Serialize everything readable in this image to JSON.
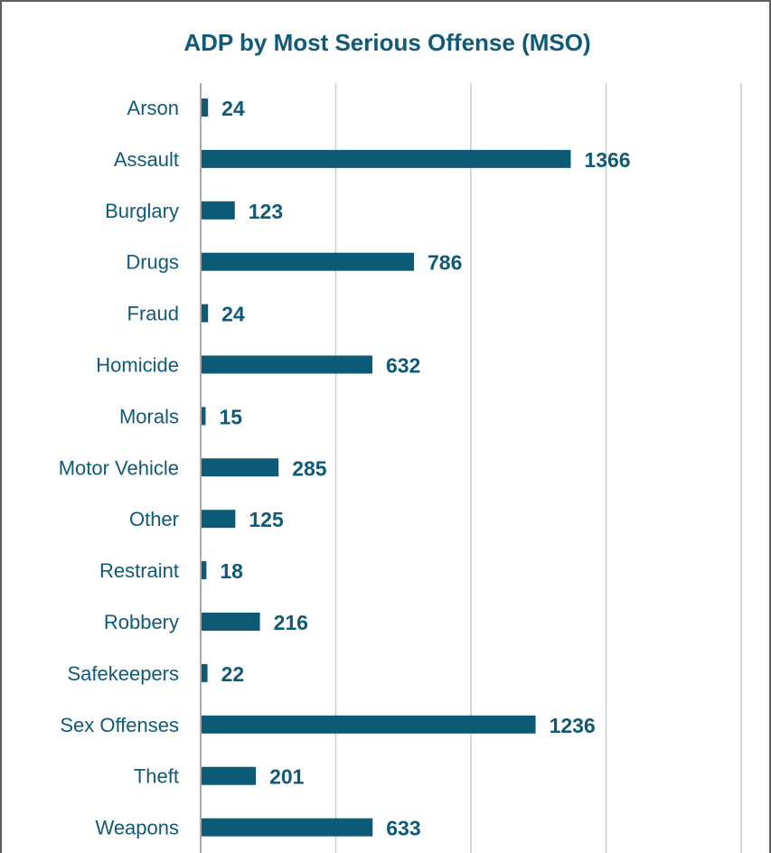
{
  "chart_data": {
    "type": "bar",
    "orientation": "horizontal",
    "title": "ADP by Most Serious Offense (MSO)",
    "xlabel": "",
    "ylabel": "",
    "categories": [
      "Arson",
      "Assault",
      "Burglary",
      "Drugs",
      "Fraud",
      "Homicide",
      "Morals",
      "Motor Vehicle",
      "Other",
      "Restraint",
      "Robbery",
      "Safekeepers",
      "Sex Offenses",
      "Theft",
      "Weapons"
    ],
    "values": [
      24,
      1366,
      123,
      786,
      24,
      632,
      15,
      285,
      125,
      18,
      216,
      22,
      1236,
      201,
      633
    ],
    "xlim": [
      0,
      2000
    ],
    "grid": true,
    "legend": "none",
    "bar_color": "#0b5b76",
    "text_color": "#0e5a78",
    "grid_color": "#c5ccd4"
  }
}
